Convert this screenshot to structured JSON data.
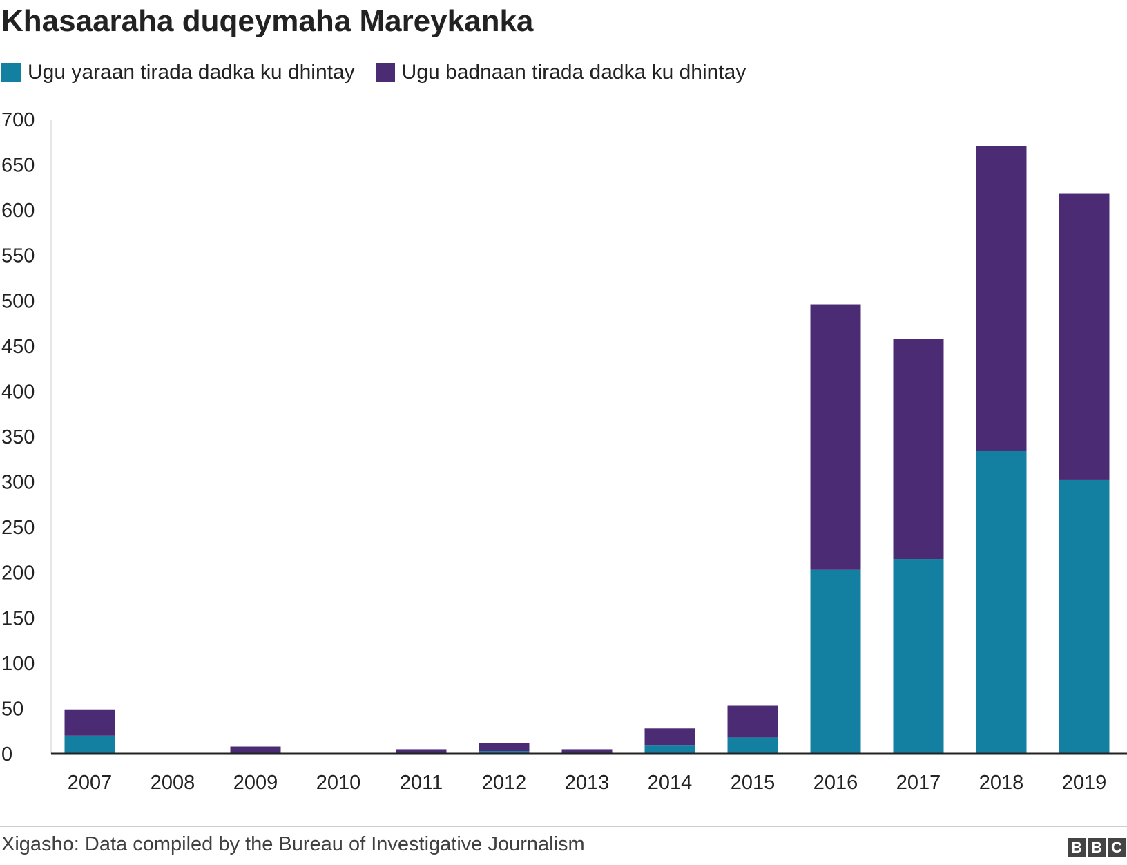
{
  "title": "Khasaaraha duqeymaha Mareykanka",
  "source": "Xigasho: Data compiled by the Bureau of Investigative Journalism",
  "logo": [
    "B",
    "B",
    "C"
  ],
  "colors": {
    "min": "#1380A1",
    "max": "#4B2C74",
    "axis": "#222222"
  },
  "chart_data": {
    "type": "bar",
    "stacked": true,
    "title": "Khasaaraha duqeymaha Mareykanka",
    "xlabel": "",
    "ylabel": "",
    "ylim": [
      0,
      700
    ],
    "yticks": [
      0,
      50,
      100,
      150,
      200,
      250,
      300,
      350,
      400,
      450,
      500,
      550,
      600,
      650,
      700
    ],
    "grid": false,
    "legend": "top-left",
    "categories": [
      "2007",
      "2008",
      "2009",
      "2010",
      "2011",
      "2012",
      "2013",
      "2014",
      "2015",
      "2016",
      "2017",
      "2018",
      "2019"
    ],
    "series": [
      {
        "name": "Ugu yaraan tirada dadka ku dhintay",
        "color": "#1380A1",
        "values": [
          20,
          0,
          1,
          0,
          1,
          3,
          1,
          9,
          18,
          203,
          215,
          334,
          302
        ]
      },
      {
        "name": "Ugu badnaan tirada dadka ku dhintay",
        "color": "#4B2C74",
        "values": [
          29,
          0,
          7,
          0,
          4,
          9,
          4,
          19,
          35,
          293,
          243,
          337,
          316
        ]
      }
    ]
  }
}
